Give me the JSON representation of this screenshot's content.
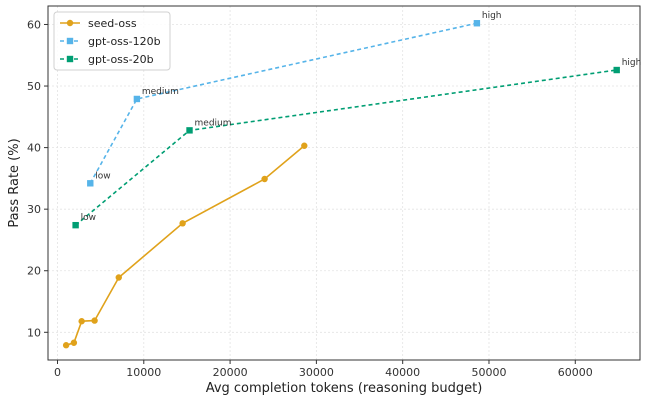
{
  "chart_data": {
    "type": "line",
    "title": "",
    "xlabel": "Avg completion tokens (reasoning budget)",
    "ylabel": "Pass Rate (%)",
    "xlim": [
      -1100,
      67500
    ],
    "ylim": [
      5.5,
      63
    ],
    "xticks": [
      0,
      10000,
      20000,
      30000,
      40000,
      50000,
      60000
    ],
    "yticks": [
      10,
      20,
      30,
      40,
      50,
      60
    ],
    "grid": true,
    "legend_position": "top-left",
    "series": [
      {
        "name": "seed-oss",
        "color": "#E0A21B",
        "linestyle": "solid",
        "marker": "circle",
        "x": [
          1000,
          1900,
          2800,
          4300,
          7100,
          14500,
          24000,
          28600
        ],
        "y": [
          7.9,
          8.3,
          11.8,
          11.9,
          18.9,
          27.7,
          34.9,
          40.3
        ],
        "labels": []
      },
      {
        "name": "gpt-oss-120b",
        "color": "#56B4E9",
        "linestyle": "dashed",
        "marker": "square",
        "x": [
          3800,
          9200,
          48600
        ],
        "y": [
          34.2,
          47.9,
          60.2
        ],
        "labels": [
          "low",
          "medium",
          "high"
        ]
      },
      {
        "name": "gpt-oss-20b",
        "color": "#009E73",
        "linestyle": "dashed",
        "marker": "square",
        "x": [
          2100,
          15300,
          64800
        ],
        "y": [
          27.4,
          42.8,
          52.6
        ],
        "labels": [
          "low",
          "medium",
          "high"
        ]
      }
    ]
  }
}
